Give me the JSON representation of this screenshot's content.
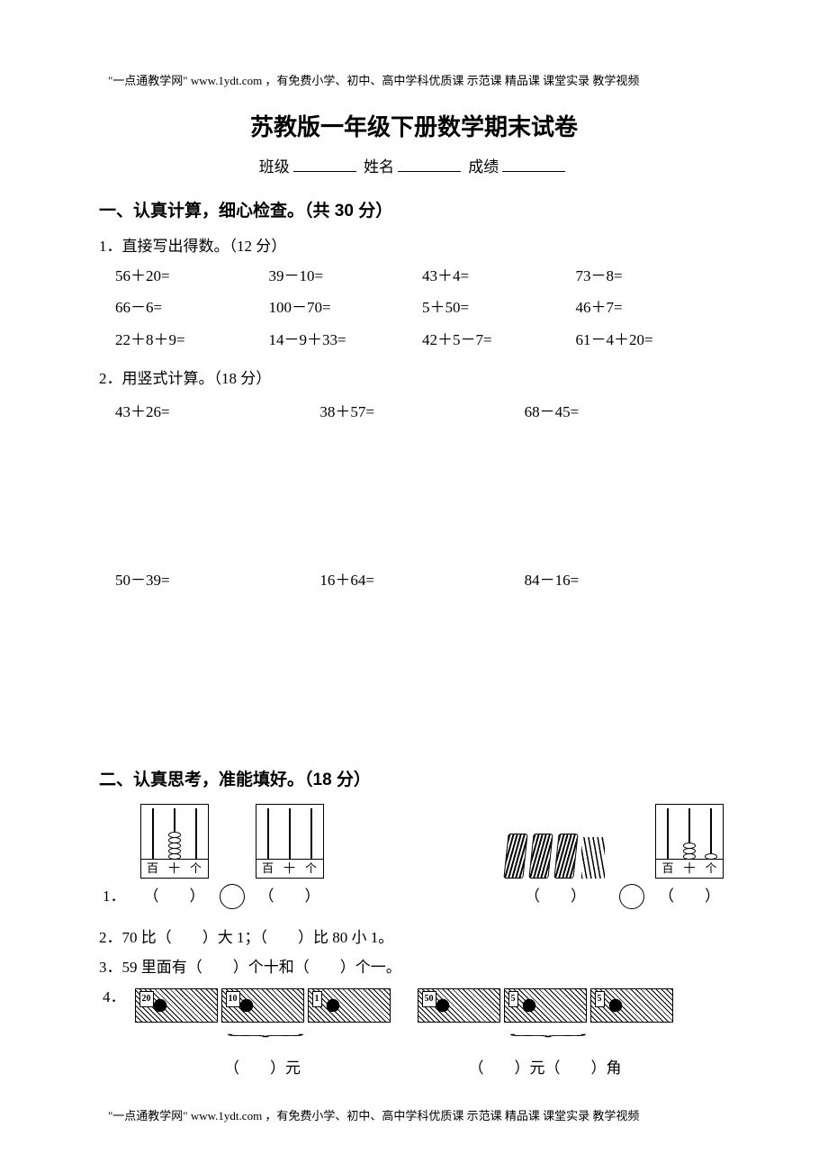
{
  "header_footer_note": "\"一点通教学网\" www.1ydt.com ，有免费小学、初中、高中学科优质课 示范课 精品课 课堂实录 教学视频",
  "title": "苏教版一年级下册数学期末试卷",
  "info": {
    "class_label": "班级",
    "name_label": "姓名",
    "score_label": "成绩"
  },
  "section1": {
    "heading": "一、认真计算，细心检查。（共 30 分）",
    "q1_label": "1．直接写出得数。（12 分）",
    "q1_items": [
      "56＋20=",
      "39－10=",
      "43＋4=",
      "73－8=",
      "66－6=",
      "100－70=",
      "5＋50=",
      "46＋7=",
      "22＋8＋9=",
      "14－9＋33=",
      "42＋5－7=",
      "61－4＋20="
    ],
    "q2_label": "2．用竖式计算。（18 分）",
    "q2_items": [
      "43＋26=",
      "38＋57=",
      "68－45=",
      "50－39=",
      "16＋64=",
      "84－16="
    ]
  },
  "section2": {
    "heading": "二、认真思考，准能填好。（18 分）",
    "q1_num": "1．",
    "places": {
      "hundred": "百",
      "ten": "十",
      "one": "个"
    },
    "paren_pair": "（　　）",
    "q2": "2．70 比（　　）大 1；（　　）比 80 小 1。",
    "q3": "3．59 里面有（　　）个十和（　　）个一。",
    "q4_num": "4．",
    "money_left_label": "（　　）元",
    "money_right_label": "（　　）元（　　）角",
    "denoms_left": [
      "20",
      "10",
      "1"
    ],
    "denoms_right": [
      "50",
      "5",
      "5"
    ]
  },
  "abacus1": {
    "beads": [
      0,
      5,
      0
    ]
  },
  "abacus2": {
    "beads": [
      0,
      0,
      0
    ]
  },
  "abacus3": {
    "beads": [
      0,
      3,
      1
    ]
  }
}
